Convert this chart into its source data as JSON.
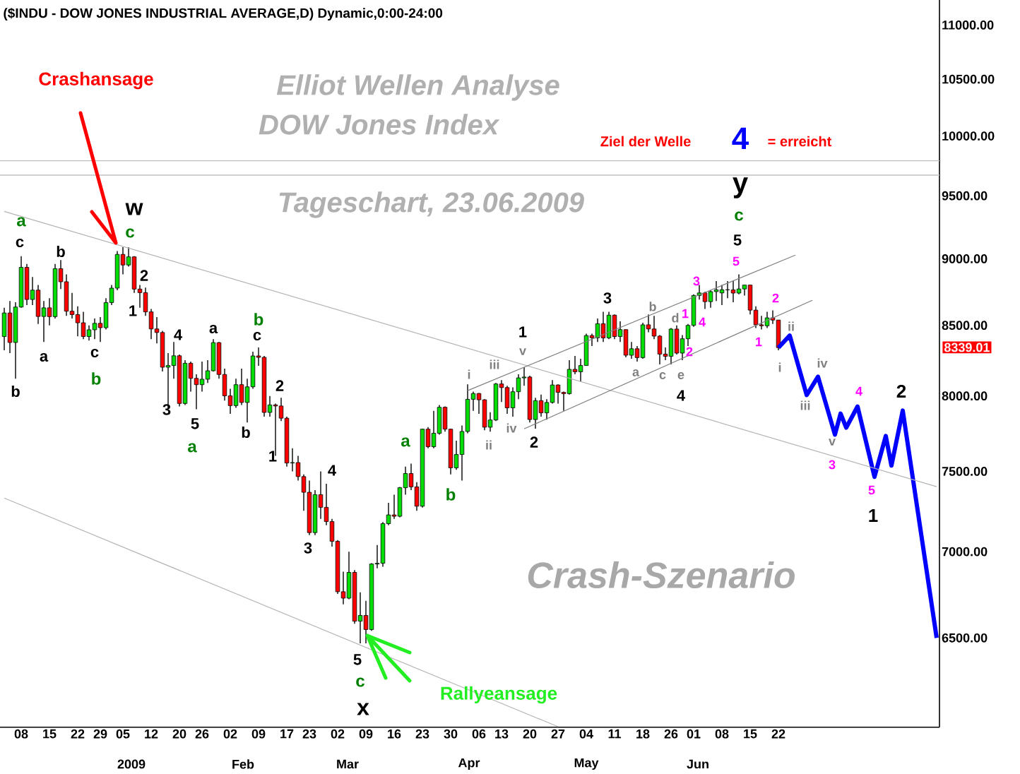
{
  "chart_data": {
    "type": "candlestick",
    "title": "($INDU - DOW JONES INDUSTRIAL AVERAGE,D) Dynamic,0:00-24:00",
    "log": true,
    "ylim": [
      6020,
      11240
    ],
    "yticks": [
      {
        "value": 6500,
        "label": "6500.00"
      },
      {
        "value": 7000,
        "label": "7000.00"
      },
      {
        "value": 7500,
        "label": "7500.00"
      },
      {
        "value": 8000,
        "label": "8000.00"
      },
      {
        "value": 8500,
        "label": "8500.00"
      },
      {
        "value": 9000,
        "label": "9000.00"
      },
      {
        "value": 9500,
        "label": "9500.00"
      },
      {
        "value": 10000,
        "label": "10000.00"
      },
      {
        "value": 10500,
        "label": "10500.00"
      },
      {
        "value": 11000,
        "label": "11000.00"
      }
    ],
    "categories": [
      null,
      null,
      null,
      "08",
      null,
      null,
      null,
      null,
      "15",
      null,
      null,
      null,
      null,
      "22",
      null,
      null,
      null,
      "29",
      null,
      null,
      null,
      "05",
      null,
      null,
      null,
      null,
      "12",
      null,
      null,
      null,
      null,
      "20",
      null,
      null,
      null,
      "26",
      null,
      null,
      null,
      null,
      "02",
      null,
      null,
      null,
      null,
      "09",
      null,
      null,
      null,
      null,
      "17",
      null,
      null,
      null,
      "23",
      null,
      null,
      null,
      null,
      "02",
      null,
      null,
      null,
      null,
      "09",
      null,
      null,
      null,
      null,
      "16",
      null,
      null,
      null,
      null,
      "23",
      null,
      null,
      null,
      null,
      "30",
      null,
      null,
      null,
      null,
      "06",
      null,
      null,
      null,
      "13",
      null,
      null,
      null,
      null,
      "20",
      null,
      null,
      null,
      null,
      "27",
      null,
      null,
      null,
      null,
      "04",
      null,
      null,
      null,
      null,
      "11",
      null,
      null,
      null,
      null,
      "18",
      null,
      null,
      null,
      null,
      "26",
      null,
      null,
      null,
      "01",
      null,
      null,
      null,
      null,
      "08",
      null,
      null,
      null,
      null,
      "15",
      null,
      null,
      null,
      null,
      "22",
      null,
      null,
      null,
      null,
      null,
      null,
      null,
      null,
      null,
      null,
      null,
      null,
      null,
      null,
      null,
      null,
      null,
      null,
      null,
      null,
      null,
      null,
      null,
      null,
      null,
      null,
      null,
      null
    ],
    "ref_lines": [
      {
        "axis": "y",
        "value": 9790,
        "color": "#c0c0c0"
      },
      {
        "axis": "y",
        "value": 9670,
        "color": "#c0c0c0"
      }
    ],
    "series": [
      {
        "type": "candlestick",
        "ohlc": [
          [
            8419,
            8630,
            8320,
            8591
          ],
          [
            8591,
            8680,
            8300,
            8376
          ],
          [
            8376,
            8670,
            8120,
            8635
          ],
          [
            8635,
            9020,
            8630,
            8934
          ],
          [
            8934,
            8960,
            8650,
            8691
          ],
          [
            8691,
            8860,
            8650,
            8761
          ],
          [
            8761,
            8800,
            8510,
            8565
          ],
          [
            8565,
            8680,
            8380,
            8629
          ],
          [
            8629,
            8700,
            8500,
            8564
          ],
          [
            8564,
            8960,
            8550,
            8924
          ],
          [
            8924,
            8990,
            8770,
            8824
          ],
          [
            8824,
            8880,
            8570,
            8604
          ],
          [
            8604,
            8740,
            8550,
            8579
          ],
          [
            8579,
            8640,
            8420,
            8519
          ],
          [
            8519,
            8600,
            8400,
            8419
          ],
          [
            8419,
            8500,
            8390,
            8468
          ],
          [
            8468,
            8550,
            8400,
            8515
          ],
          [
            8515,
            8560,
            8380,
            8483
          ],
          [
            8483,
            8700,
            8470,
            8668
          ],
          [
            8668,
            8800,
            8650,
            8776
          ],
          [
            8776,
            9060,
            8760,
            9034
          ],
          [
            9034,
            9090,
            8880,
            8952
          ],
          [
            8952,
            9090,
            8940,
            9015
          ],
          [
            9015,
            9020,
            8740,
            8769
          ],
          [
            8769,
            8800,
            8630,
            8742
          ],
          [
            8742,
            8780,
            8570,
            8599
          ],
          [
            8599,
            8620,
            8400,
            8474
          ],
          [
            8474,
            8560,
            8370,
            8448
          ],
          [
            8448,
            8460,
            8170,
            8200
          ],
          [
            8200,
            8300,
            7910,
            8212
          ],
          [
            8212,
            8380,
            8120,
            8281
          ],
          [
            8281,
            8290,
            7930,
            7949
          ],
          [
            7949,
            8250,
            7940,
            8228
          ],
          [
            8228,
            8240,
            8030,
            8122
          ],
          [
            8122,
            8150,
            7910,
            8078
          ],
          [
            8078,
            8240,
            8030,
            8116
          ],
          [
            8116,
            8250,
            8090,
            8175
          ],
          [
            8175,
            8400,
            8170,
            8375
          ],
          [
            8375,
            8380,
            8120,
            8149
          ],
          [
            8149,
            8190,
            7970,
            8001
          ],
          [
            8001,
            8050,
            7880,
            7936
          ],
          [
            7936,
            8120,
            7920,
            8078
          ],
          [
            8078,
            8190,
            7940,
            7957
          ],
          [
            7957,
            8120,
            7820,
            8063
          ],
          [
            8063,
            8310,
            8050,
            8280
          ],
          [
            8280,
            8340,
            8210,
            8270
          ],
          [
            8270,
            8280,
            7860,
            7888
          ],
          [
            7888,
            8000,
            7860,
            7939
          ],
          [
            7939,
            7950,
            7600,
            7933
          ],
          [
            7933,
            7990,
            7830,
            7850
          ],
          [
            7850,
            7860,
            7530,
            7553
          ],
          [
            7553,
            7650,
            7500,
            7556
          ],
          [
            7556,
            7600,
            7440,
            7466
          ],
          [
            7466,
            7480,
            7250,
            7366
          ],
          [
            7366,
            7440,
            7100,
            7115
          ],
          [
            7115,
            7380,
            7100,
            7351
          ],
          [
            7351,
            7500,
            7200,
            7271
          ],
          [
            7271,
            7420,
            7160,
            7183
          ],
          [
            7183,
            7200,
            7030,
            7063
          ],
          [
            7063,
            7070,
            6750,
            6763
          ],
          [
            6763,
            6880,
            6690,
            6726
          ],
          [
            6726,
            7000,
            6720,
            6876
          ],
          [
            6876,
            6890,
            6580,
            6594
          ],
          [
            6594,
            6760,
            6470,
            6627
          ],
          [
            6627,
            6710,
            6470,
            6547
          ],
          [
            6547,
            6930,
            6540,
            6926
          ],
          [
            6926,
            7040,
            6900,
            6930
          ],
          [
            6930,
            7180,
            6910,
            7170
          ],
          [
            7170,
            7300,
            7160,
            7224
          ],
          [
            7224,
            7350,
            7200,
            7216
          ],
          [
            7216,
            7400,
            7210,
            7395
          ],
          [
            7395,
            7530,
            7350,
            7486
          ],
          [
            7486,
            7550,
            7380,
            7400
          ],
          [
            7400,
            7430,
            7250,
            7278
          ],
          [
            7278,
            7780,
            7270,
            7776
          ],
          [
            7776,
            7790,
            7650,
            7660
          ],
          [
            7660,
            7900,
            7650,
            7749
          ],
          [
            7749,
            7940,
            7740,
            7924
          ],
          [
            7924,
            7930,
            7760,
            7776
          ],
          [
            7776,
            7780,
            7480,
            7522
          ],
          [
            7522,
            7700,
            7510,
            7609
          ],
          [
            7609,
            7800,
            7440,
            7761
          ],
          [
            7761,
            8080,
            7750,
            7978
          ],
          [
            7978,
            8030,
            7900,
            8017
          ],
          [
            8017,
            8020,
            7880,
            7975
          ],
          [
            7975,
            7980,
            7770,
            7789
          ],
          [
            7789,
            7890,
            7760,
            7837
          ],
          [
            7837,
            8090,
            7830,
            8083
          ],
          [
            8083,
            8110,
            7960,
            8058
          ],
          [
            8058,
            8070,
            7880,
            7920
          ],
          [
            7920,
            8060,
            7860,
            8029
          ],
          [
            8029,
            8150,
            7980,
            8125
          ],
          [
            8125,
            8200,
            8070,
            8131
          ],
          [
            8131,
            8140,
            7820,
            7841
          ],
          [
            7841,
            7990,
            7780,
            7969
          ],
          [
            7969,
            8010,
            7860,
            7886
          ],
          [
            7886,
            7980,
            7840,
            7957
          ],
          [
            7957,
            8110,
            7950,
            8076
          ],
          [
            8076,
            8080,
            7950,
            8025
          ],
          [
            8025,
            8030,
            7900,
            8016
          ],
          [
            8016,
            8250,
            8010,
            8185
          ],
          [
            8185,
            8280,
            8150,
            8168
          ],
          [
            8168,
            8260,
            8100,
            8212
          ],
          [
            8212,
            8440,
            8210,
            8426
          ],
          [
            8426,
            8440,
            8350,
            8410
          ],
          [
            8410,
            8550,
            8380,
            8512
          ],
          [
            8512,
            8600,
            8380,
            8409
          ],
          [
            8409,
            8600,
            8400,
            8575
          ],
          [
            8575,
            8580,
            8400,
            8419
          ],
          [
            8419,
            8530,
            8380,
            8469
          ],
          [
            8469,
            8470,
            8270,
            8285
          ],
          [
            8285,
            8380,
            8260,
            8331
          ],
          [
            8331,
            8350,
            8240,
            8268
          ],
          [
            8268,
            8520,
            8260,
            8504
          ],
          [
            8504,
            8580,
            8450,
            8474
          ],
          [
            8474,
            8570,
            8400,
            8422
          ],
          [
            8422,
            8430,
            8220,
            8293
          ],
          [
            8293,
            8340,
            8250,
            8277
          ],
          [
            8277,
            8480,
            8220,
            8473
          ],
          [
            8473,
            8500,
            8290,
            8300
          ],
          [
            8300,
            8430,
            8250,
            8403
          ],
          [
            8403,
            8510,
            8350,
            8500
          ],
          [
            8500,
            8730,
            8490,
            8721
          ],
          [
            8721,
            8800,
            8690,
            8740
          ],
          [
            8740,
            8750,
            8620,
            8675
          ],
          [
            8675,
            8760,
            8630,
            8750
          ],
          [
            8750,
            8830,
            8680,
            8764
          ],
          [
            8740,
            8800,
            8650,
            8764
          ],
          [
            8764,
            8830,
            8700,
            8763
          ],
          [
            8763,
            8830,
            8670,
            8739
          ],
          [
            8739,
            8880,
            8730,
            8770
          ],
          [
            8770,
            8800,
            8720,
            8799
          ],
          [
            8799,
            8800,
            8580,
            8612
          ],
          [
            8612,
            8640,
            8480,
            8504
          ],
          [
            8504,
            8570,
            8470,
            8497
          ],
          [
            8497,
            8600,
            8480,
            8555
          ],
          [
            8555,
            8610,
            8510,
            8539
          ],
          [
            8539,
            8540,
            8320,
            8339
          ],
          null,
          null,
          null,
          null,
          null,
          null,
          null,
          null,
          null,
          null,
          null,
          null,
          null,
          null,
          null,
          null,
          null,
          null,
          null,
          null,
          null,
          null,
          null,
          null,
          null,
          null,
          null,
          null
        ],
        "colors": [
          "#00dd00",
          "#ff0000",
          "#00dd00",
          "#00dd00",
          "#ff0000",
          "#00dd00",
          "#ff0000",
          "#00dd00",
          "#ff0000",
          "#00dd00",
          "#ff0000",
          "#ff0000",
          "#ff0000",
          "#ff0000",
          "#ff0000",
          "#00dd00",
          "#00dd00",
          "#ff0000",
          "#00dd00",
          "#00dd00",
          "#00dd00",
          "#ff0000",
          "#00dd00",
          "#ff0000",
          "#ff0000",
          "#ff0000",
          "#ff0000",
          "#ff0000",
          "#ff0000",
          "#00dd00",
          "#00dd00",
          "#ff0000",
          "#00dd00",
          "#ff0000",
          "#ff0000",
          "#00dd00",
          "#00dd00",
          "#00dd00",
          "#ff0000",
          "#ff0000",
          "#ff0000",
          "#00dd00",
          "#ff0000",
          "#00dd00",
          "#00dd00",
          "#ff0000",
          "#ff0000",
          "#00dd00",
          "#ff0000",
          "#ff0000",
          "#ff0000",
          "#00dd00",
          "#ff0000",
          "#ff0000",
          "#ff0000",
          "#00dd00",
          "#ff0000",
          "#ff0000",
          "#ff0000",
          "#ff0000",
          "#ff0000",
          "#00dd00",
          "#ff0000",
          "#00dd00",
          "#ff0000",
          "#00dd00",
          "#00dd00",
          "#00dd00",
          "#00dd00",
          "#ff0000",
          "#00dd00",
          "#00dd00",
          "#ff0000",
          "#ff0000",
          "#00dd00",
          "#ff0000",
          "#00dd00",
          "#00dd00",
          "#ff0000",
          "#ff0000",
          "#00dd00",
          "#00dd00",
          "#00dd00",
          "#00dd00",
          "#ff0000",
          "#ff0000",
          "#00dd00",
          "#00dd00",
          "#ff0000",
          "#ff0000",
          "#00dd00",
          "#00dd00",
          "#00dd00",
          "#ff0000",
          "#00dd00",
          "#ff0000",
          "#00dd00",
          "#00dd00",
          "#ff0000",
          "#ff0000",
          "#00dd00",
          "#ff0000",
          "#00dd00",
          "#00dd00",
          "#ff0000",
          "#00dd00",
          "#ff0000",
          "#00dd00",
          "#ff0000",
          "#00dd00",
          "#ff0000",
          "#00dd00",
          "#ff0000",
          "#00dd00",
          "#ff0000",
          "#ff0000",
          "#ff0000",
          "#ff0000",
          "#00dd00",
          "#ff0000",
          "#00dd00",
          "#00dd00",
          "#00dd00",
          "#00dd00",
          "#ff0000",
          "#00dd00",
          "#00dd00",
          "#00dd00",
          "#ff0000",
          "#ff0000",
          "#00dd00",
          "#00dd00",
          "#ff0000",
          "#ff0000",
          "#ff0000",
          "#00dd00",
          "#ff0000",
          "#ff0000",
          null,
          null,
          null,
          null,
          null,
          null,
          null,
          null,
          null,
          null,
          null,
          null,
          null,
          null,
          null,
          null,
          null,
          null,
          null,
          null,
          null,
          null,
          null,
          null,
          null,
          null,
          null,
          null
        ]
      },
      {
        "type": "line",
        "color": "#0000ff",
        "values": [
          null,
          null,
          null,
          null,
          null,
          null,
          null,
          null,
          null,
          null,
          null,
          null,
          null,
          null,
          null,
          null,
          null,
          null,
          null,
          null,
          null,
          null,
          null,
          null,
          null,
          null,
          null,
          null,
          null,
          null,
          null,
          null,
          null,
          null,
          null,
          null,
          null,
          null,
          null,
          null,
          null,
          null,
          null,
          null,
          null,
          null,
          null,
          null,
          null,
          null,
          null,
          null,
          null,
          null,
          null,
          null,
          null,
          null,
          null,
          null,
          null,
          null,
          null,
          null,
          null,
          null,
          null,
          null,
          null,
          null,
          null,
          null,
          null,
          null,
          null,
          null,
          null,
          null,
          null,
          null,
          null,
          null,
          null,
          null,
          null,
          null,
          null,
          null,
          null,
          null,
          null,
          null,
          null,
          null,
          null,
          null,
          null,
          null,
          null,
          null,
          null,
          null,
          null,
          null,
          null,
          null,
          null,
          null,
          null,
          null,
          null,
          null,
          null,
          null,
          null,
          null,
          null,
          null,
          null,
          null,
          null,
          null,
          null,
          null,
          null,
          null,
          null,
          null,
          null,
          null,
          null,
          null,
          null,
          null,
          null,
          null,
          null,
          8339,
          null,
          8426,
          null,
          null,
          8006,
          null,
          8134,
          null,
          null,
          7740,
          7882,
          7787,
          null,
          7930,
          null,
          null,
          7464,
          null,
          7731,
          7536,
          null,
          7901,
          null,
          null,
          null,
          null,
          null,
          6500
        ]
      },
      {
        "type": "line",
        "color": "#b4b4b4",
        "values": [
          9373,
          null,
          null,
          null,
          null,
          null,
          null,
          null,
          null,
          null,
          null,
          null,
          null,
          null,
          null,
          null,
          null,
          null,
          null,
          null,
          null,
          null,
          null,
          null,
          null,
          null,
          null,
          null,
          null,
          null,
          null,
          null,
          null,
          null,
          null,
          null,
          null,
          null,
          null,
          null,
          null,
          null,
          null,
          null,
          null,
          null,
          null,
          null,
          null,
          null,
          null,
          null,
          null,
          null,
          null,
          null,
          null,
          null,
          null,
          null,
          null,
          null,
          null,
          null,
          null,
          null,
          null,
          null,
          null,
          null,
          null,
          null,
          null,
          null,
          null,
          null,
          null,
          null,
          null,
          null,
          null,
          null,
          null,
          null,
          null,
          null,
          null,
          null,
          null,
          null,
          null,
          null,
          null,
          null,
          null,
          null,
          null,
          null,
          null,
          null,
          null,
          null,
          null,
          null,
          null,
          null,
          null,
          null,
          null,
          null,
          null,
          null,
          null,
          null,
          null,
          null,
          null,
          null,
          null,
          null,
          null,
          null,
          null,
          null,
          null,
          null,
          null,
          null,
          null,
          null,
          null,
          null,
          null,
          null,
          null,
          null,
          null,
          null,
          null,
          null,
          null,
          null,
          null,
          null,
          null,
          null,
          null,
          null,
          null,
          null,
          null,
          null,
          null,
          null,
          null,
          null,
          null,
          null,
          null,
          null,
          null,
          null,
          null,
          null,
          null,
          7401
        ]
      },
      {
        "type": "line",
        "color": "#b4b4b4",
        "values": [
          7329,
          null,
          null,
          null,
          null,
          null,
          null,
          null,
          null,
          null,
          null,
          null,
          null,
          null,
          null,
          null,
          null,
          null,
          null,
          null,
          null,
          null,
          null,
          null,
          null,
          null,
          null,
          null,
          null,
          null,
          null,
          null,
          null,
          null,
          null,
          null,
          null,
          null,
          null,
          null,
          null,
          null,
          null,
          null,
          null,
          null,
          null,
          null,
          null,
          null,
          null,
          null,
          null,
          null,
          null,
          null,
          null,
          null,
          null,
          null,
          null,
          null,
          null,
          null,
          null,
          null,
          null,
          null,
          null,
          null,
          null,
          null,
          null,
          null,
          null,
          null,
          null,
          null,
          null,
          null,
          null,
          null,
          null,
          null,
          null,
          null,
          null,
          null,
          null,
          null,
          null,
          null,
          null,
          null,
          null,
          null,
          null,
          null,
          6023,
          null,
          null,
          null,
          null,
          null,
          null,
          null,
          null,
          null,
          null,
          null,
          null,
          null,
          null,
          null,
          null,
          null,
          null,
          null,
          null,
          null,
          null,
          null,
          null,
          null,
          null,
          null,
          null,
          null,
          null,
          null,
          null,
          null,
          null,
          null,
          null,
          null,
          null,
          null,
          null,
          null,
          null,
          null,
          null,
          null,
          null,
          null,
          null,
          null,
          null,
          null,
          null,
          null,
          null,
          null,
          null,
          null,
          null,
          null,
          null,
          null,
          null,
          null,
          null,
          null,
          null,
          null
        ]
      },
      {
        "type": "line",
        "color": "#808080",
        "values": [
          null,
          null,
          null,
          null,
          null,
          null,
          null,
          null,
          null,
          null,
          null,
          null,
          null,
          null,
          null,
          null,
          null,
          null,
          null,
          null,
          null,
          null,
          null,
          null,
          null,
          null,
          null,
          null,
          null,
          null,
          null,
          null,
          null,
          null,
          null,
          null,
          null,
          null,
          null,
          null,
          null,
          null,
          null,
          null,
          null,
          null,
          null,
          null,
          null,
          null,
          null,
          null,
          null,
          null,
          null,
          null,
          null,
          null,
          null,
          null,
          null,
          null,
          null,
          null,
          null,
          null,
          null,
          null,
          null,
          null,
          null,
          null,
          null,
          null,
          null,
          null,
          null,
          null,
          null,
          null,
          null,
          null,
          8037,
          null,
          null,
          null,
          null,
          null,
          null,
          null,
          null,
          null,
          null,
          null,
          null,
          null,
          null,
          null,
          null,
          null,
          null,
          null,
          null,
          null,
          null,
          null,
          null,
          null,
          null,
          null,
          null,
          null,
          null,
          null,
          null,
          null,
          null,
          null,
          null,
          null,
          null,
          null,
          null,
          null,
          null,
          null,
          null,
          null,
          null,
          null,
          null,
          null,
          null,
          null,
          null,
          null,
          null,
          null,
          null,
          null,
          9028,
          null,
          null,
          null,
          null,
          null,
          null,
          null,
          null,
          null,
          null,
          null,
          null,
          null,
          null,
          null,
          null,
          null,
          null,
          null,
          null,
          null,
          null,
          null,
          null,
          null
        ]
      },
      {
        "type": "line",
        "color": "#808080",
        "values": [
          null,
          null,
          null,
          null,
          null,
          null,
          null,
          null,
          null,
          null,
          null,
          null,
          null,
          null,
          null,
          null,
          null,
          null,
          null,
          null,
          null,
          null,
          null,
          null,
          null,
          null,
          null,
          null,
          null,
          null,
          null,
          null,
          null,
          null,
          null,
          null,
          null,
          null,
          null,
          null,
          null,
          null,
          null,
          null,
          null,
          null,
          null,
          null,
          null,
          null,
          null,
          null,
          null,
          null,
          null,
          null,
          null,
          null,
          null,
          null,
          null,
          null,
          null,
          null,
          null,
          null,
          null,
          null,
          null,
          null,
          null,
          null,
          null,
          null,
          null,
          null,
          null,
          null,
          null,
          null,
          null,
          null,
          null,
          null,
          null,
          null,
          null,
          null,
          null,
          null,
          null,
          null,
          7778,
          null,
          null,
          null,
          null,
          null,
          null,
          null,
          null,
          null,
          null,
          null,
          null,
          null,
          null,
          null,
          null,
          null,
          null,
          null,
          null,
          null,
          null,
          null,
          null,
          null,
          null,
          null,
          null,
          null,
          null,
          null,
          null,
          null,
          null,
          null,
          null,
          null,
          null,
          null,
          null,
          null,
          null,
          null,
          null,
          null,
          null,
          null,
          null,
          null,
          null,
          8685,
          null,
          null,
          null,
          null,
          null,
          null,
          null,
          null,
          null,
          null,
          null,
          null,
          null,
          null,
          null,
          null,
          null,
          null,
          null,
          null,
          null,
          null
        ]
      }
    ],
    "annotations": [
      "Crashansage",
      "Rallyeansage",
      "Elliot Wellen Analyse",
      "DOW Jones Index",
      "Tageschart, 23.06.2009",
      "Crash-Szenario",
      "Ziel der Welle",
      "4",
      "= erreicht",
      "8339.01",
      "2009",
      "Feb",
      "Mar",
      "Apr",
      "May",
      "Jun",
      "a",
      "c",
      "b",
      "b",
      "a",
      "c",
      "b",
      "w",
      "c",
      "2",
      "1",
      "4",
      "3",
      "5",
      "a",
      "a",
      "b",
      "c",
      "b",
      "2",
      "1",
      "4",
      "3",
      "5",
      "c",
      "x",
      "a",
      "b",
      "i",
      "iii",
      "v",
      "1",
      "ii",
      "iv",
      "2",
      "3",
      "a",
      "b",
      "c",
      "e",
      "d",
      "4",
      "1",
      "4",
      "2",
      "3",
      "5",
      "5",
      "c",
      "y",
      "2",
      "1",
      "ii",
      "i",
      "iii",
      "iv",
      "v",
      "3",
      "4",
      "2",
      "5",
      "1"
    ]
  }
}
